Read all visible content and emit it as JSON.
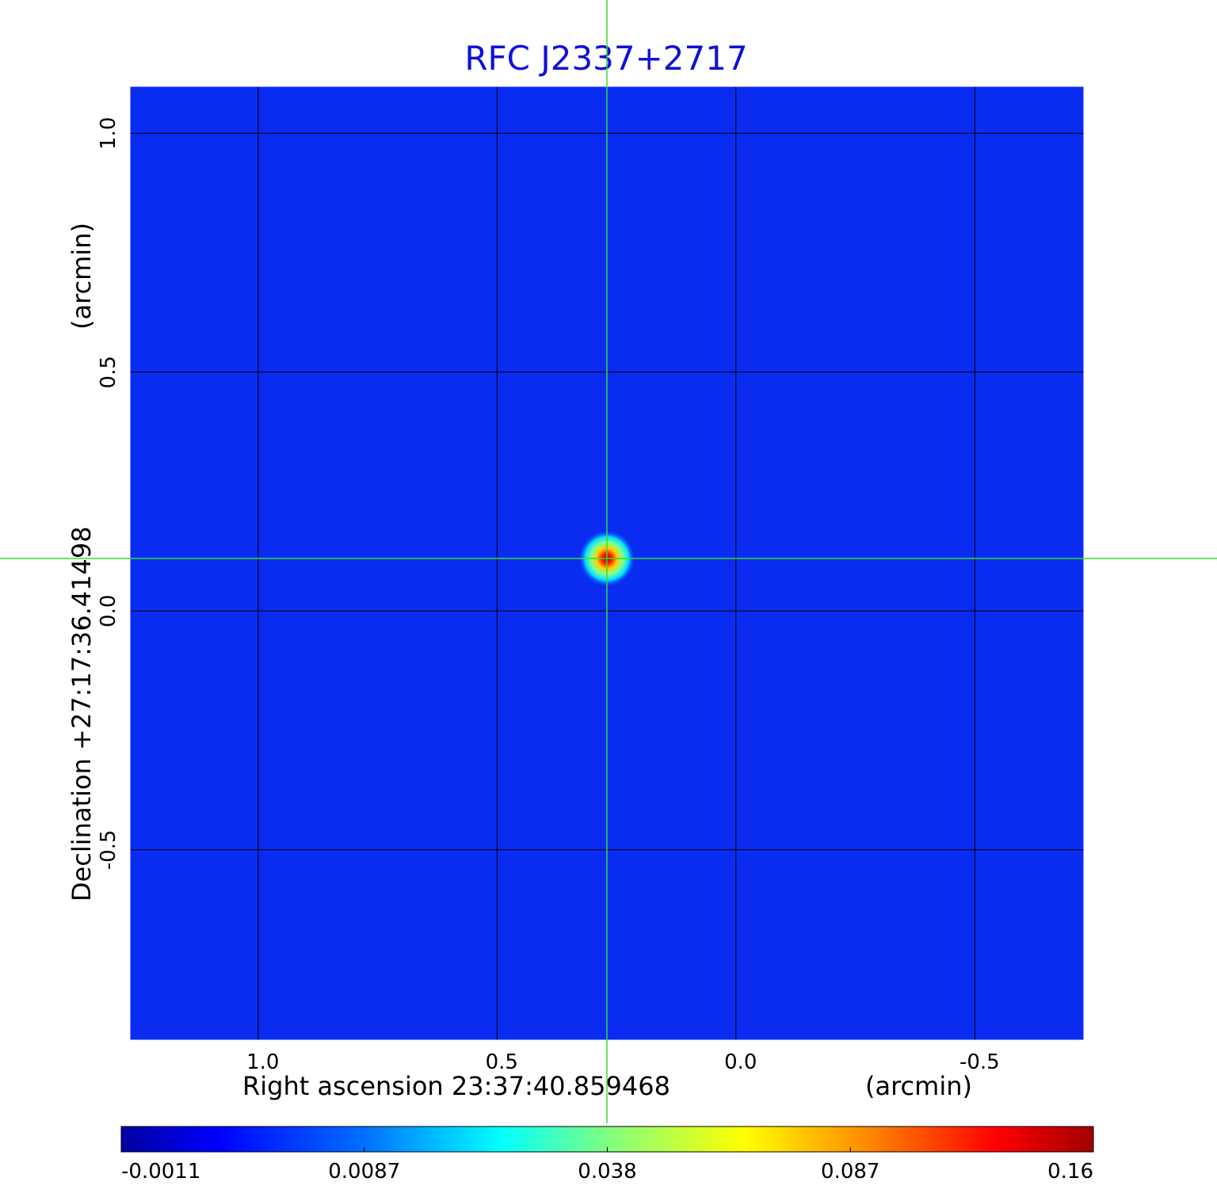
{
  "chart_data": {
    "type": "heatmap",
    "title": "RFC J2337+2717",
    "xlabel": "Right ascension  23:37:40.859468",
    "xunit": "(arcmin)",
    "ylabel": "Declination  +27:17:36.41498",
    "yunit": "(arcmin)",
    "x_axis_reversed": true,
    "xlim": [
      1.27,
      -0.73
    ],
    "ylim": [
      -0.9,
      1.1
    ],
    "x_ticks": [
      {
        "value": 1.0,
        "label": "1.0"
      },
      {
        "value": 0.5,
        "label": "0.5"
      },
      {
        "value": 0.0,
        "label": "0.0"
      },
      {
        "value": -0.5,
        "label": "-0.5"
      }
    ],
    "y_ticks": [
      {
        "value": 1.0,
        "label": "1.0"
      },
      {
        "value": 0.5,
        "label": "0.5"
      },
      {
        "value": 0.0,
        "label": "0.0"
      },
      {
        "value": -0.5,
        "label": "-0.5"
      }
    ],
    "grid": true,
    "crosshair": {
      "x": 0.27,
      "y": 0.11,
      "color": "#33dd33"
    },
    "source_peak": {
      "x": 0.27,
      "y": 0.11,
      "value": 0.16
    },
    "colormap": [
      "#0000a0",
      "#0000ff",
      "#0070ff",
      "#00ffff",
      "#80ff80",
      "#ffff00",
      "#ff9000",
      "#ff0000",
      "#a00000"
    ],
    "colorbar": {
      "range": [
        -0.0011,
        0.16
      ],
      "ticks": [
        {
          "value": -0.0011,
          "label": "-0.0011"
        },
        {
          "value": 0.0087,
          "label": "0.0087"
        },
        {
          "value": 0.038,
          "label": "0.038"
        },
        {
          "value": 0.087,
          "label": "0.087"
        },
        {
          "value": 0.16,
          "label": "0.16"
        }
      ]
    },
    "background_color": "#0a2cf0"
  }
}
